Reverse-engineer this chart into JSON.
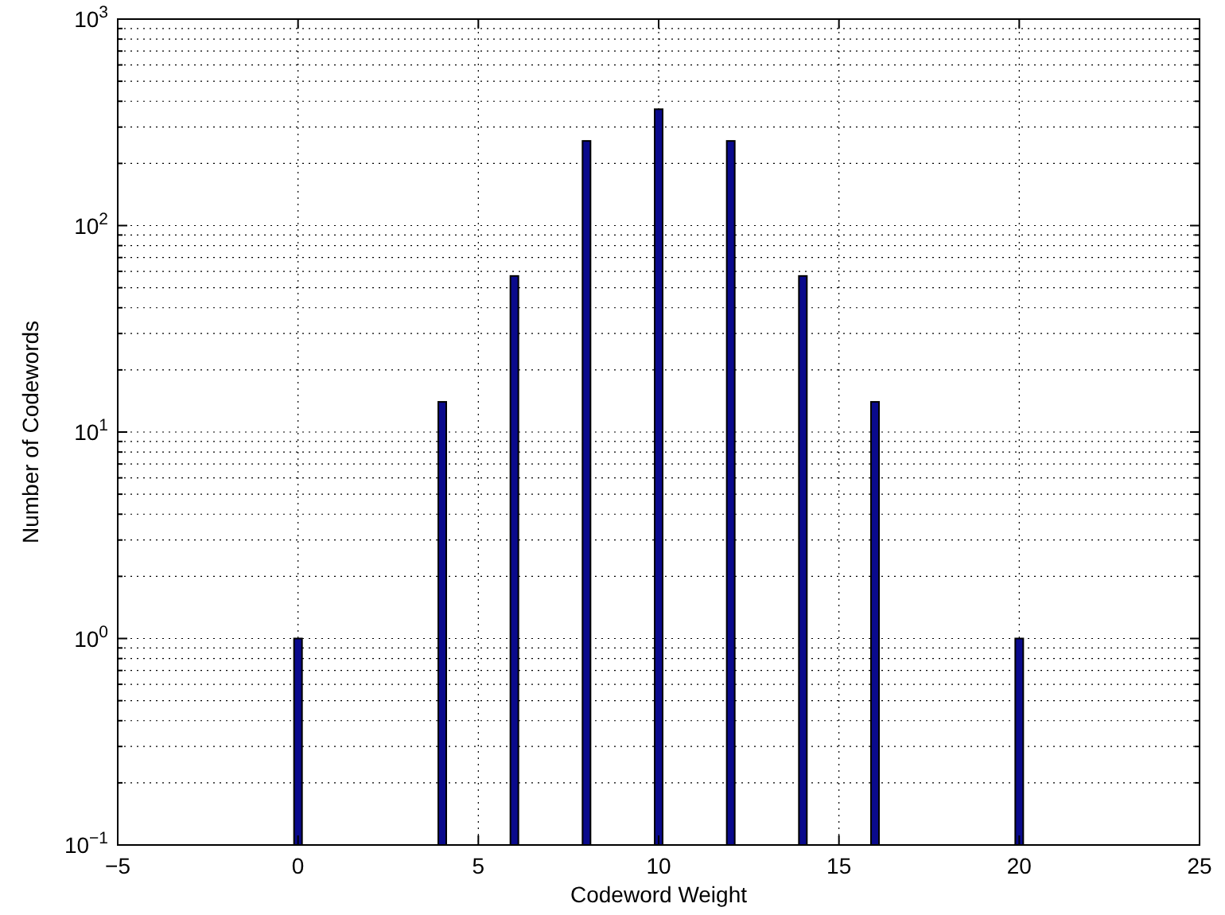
{
  "chart_data": {
    "type": "bar",
    "xlabel": "Codeword Weight",
    "ylabel": "Number of Codewords",
    "x": [
      0,
      4,
      6,
      8,
      10,
      12,
      14,
      16,
      20
    ],
    "values": [
      1,
      14,
      57,
      257,
      366,
      257,
      57,
      14,
      1
    ],
    "color": "#0a0a8c",
    "xlim": [
      -5,
      25
    ],
    "xticks": [
      {
        "value": -5,
        "label": "−5"
      },
      0,
      5,
      10,
      15,
      20,
      25
    ],
    "ylim": [
      0.1,
      1000
    ],
    "yticks": [
      {
        "value": 0.1,
        "label": "10$^{−1}$"
      },
      {
        "value": 1,
        "label": "10$^{0}$"
      },
      {
        "value": 10,
        "label": "10$^{1}$"
      },
      {
        "value": 100,
        "label": "10$^{2}$"
      },
      {
        "value": 1000,
        "label": "10$^{3}$"
      }
    ],
    "log": "y",
    "grid": true
  }
}
